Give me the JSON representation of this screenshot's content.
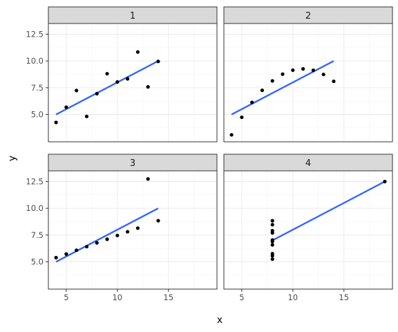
{
  "chart_data": {
    "type": "scatter",
    "xlabel": "x",
    "ylabel": "y",
    "xlim": [
      3.25,
      19.75
    ],
    "ylim": [
      2.45,
      13.5
    ],
    "x_ticks": [
      5,
      10,
      15
    ],
    "x_tick_labels": [
      "5",
      "10",
      "15"
    ],
    "y_ticks": [
      5.0,
      7.5,
      10.0,
      12.5
    ],
    "y_tick_labels": [
      "5.0",
      "7.5",
      "10.0",
      "12.5"
    ],
    "grid": true,
    "overlay": "linear fit line per panel",
    "facets": [
      {
        "label": "1",
        "x": [
          10,
          8,
          13,
          9,
          11,
          14,
          6,
          4,
          12,
          7,
          5
        ],
        "y": [
          8.04,
          6.95,
          7.58,
          8.81,
          8.33,
          9.96,
          7.24,
          4.26,
          10.84,
          4.82,
          5.68
        ],
        "fit": {
          "x": [
            4,
            14
          ],
          "y": [
            5.0,
            10.0
          ]
        }
      },
      {
        "label": "2",
        "x": [
          10,
          8,
          13,
          9,
          11,
          14,
          6,
          4,
          12,
          7,
          5
        ],
        "y": [
          9.14,
          8.14,
          8.74,
          8.77,
          9.26,
          8.1,
          6.13,
          3.1,
          9.13,
          7.26,
          4.74
        ],
        "fit": {
          "x": [
            4,
            14
          ],
          "y": [
            5.0,
            10.0
          ]
        }
      },
      {
        "label": "3",
        "x": [
          10,
          8,
          13,
          9,
          11,
          14,
          6,
          4,
          12,
          7,
          5
        ],
        "y": [
          7.46,
          6.77,
          12.74,
          7.11,
          7.81,
          8.84,
          6.08,
          5.39,
          8.15,
          6.42,
          5.73
        ],
        "fit": {
          "x": [
            4,
            14
          ],
          "y": [
            5.0,
            10.0
          ]
        }
      },
      {
        "label": "4",
        "x": [
          8,
          8,
          8,
          8,
          8,
          8,
          8,
          19,
          8,
          8,
          8
        ],
        "y": [
          6.58,
          5.76,
          7.71,
          8.84,
          8.47,
          7.04,
          5.25,
          12.5,
          5.56,
          7.91,
          6.89
        ],
        "fit": {
          "x": [
            8,
            19
          ],
          "y": [
            7.0,
            12.5
          ]
        }
      }
    ]
  },
  "colors": {
    "strip": "#d9d9d9",
    "fit_line": "#3366ff",
    "points": "#000000",
    "grid": "#ebebeb"
  }
}
